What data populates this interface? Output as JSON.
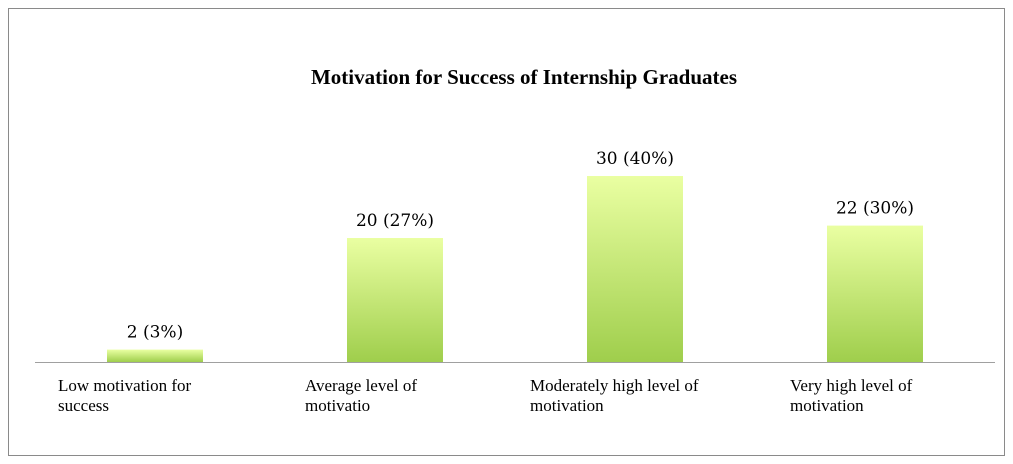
{
  "chart_data": {
    "type": "bar",
    "title": "Motivation for Success of Internship Graduates",
    "categories": [
      "Low motivation for success",
      "Average level of motivatio",
      "Moderately high level of motivation",
      "Very high level of motivation"
    ],
    "values": [
      2,
      20,
      30,
      22
    ],
    "value_labels": [
      "2 (3%)",
      "20 (27%)",
      "30 (40%)",
      "22 (30%)"
    ],
    "color": "#9fce4c"
  }
}
